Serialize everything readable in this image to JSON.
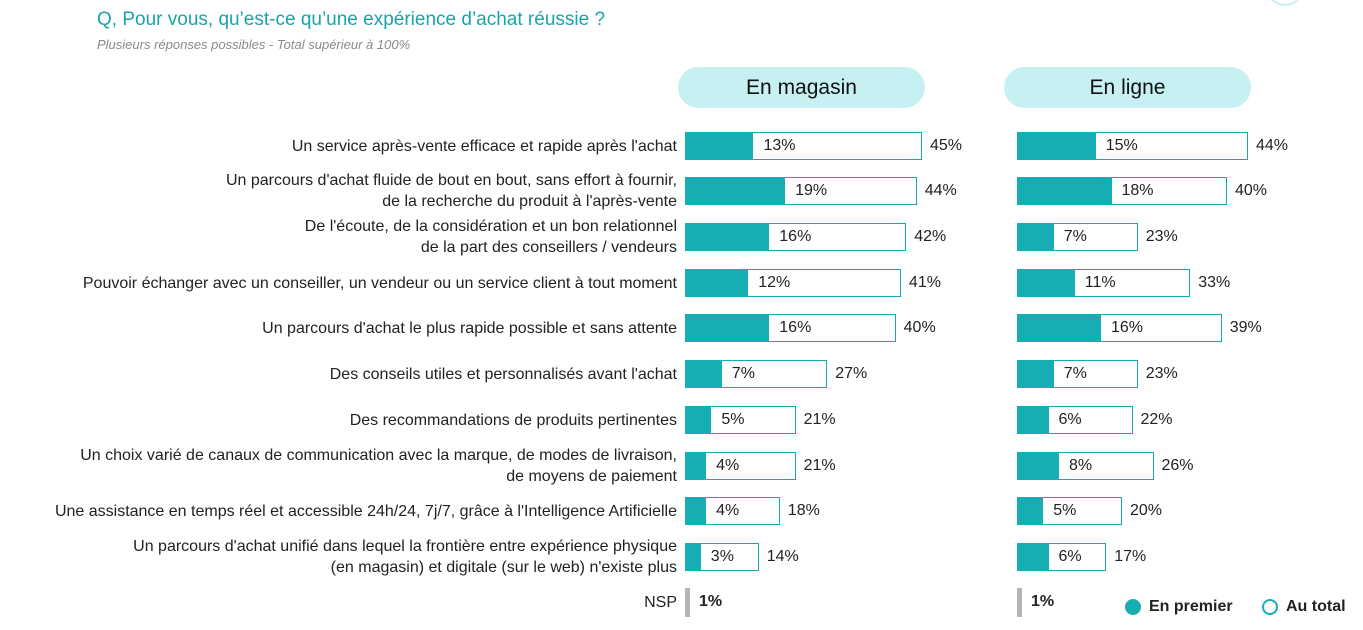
{
  "header": {
    "question": "Q, Pour vous, qu’est-ce qu’une expérience d’achat réussie ?",
    "subtitle": "Plusieurs réponses possibles - Total supérieur à 100%"
  },
  "chart_data": {
    "type": "bar",
    "orientation": "horizontal",
    "panels": [
      "En magasin",
      "En ligne"
    ],
    "categories": [
      [
        "Un service après-vente efficace et rapide après l'achat"
      ],
      [
        "Un parcours d'achat fluide de bout en bout, sans effort à fournir,",
        "de la recherche du produit à l'après-vente"
      ],
      [
        "De l'écoute, de la considération et un bon relationnel",
        "de la part des conseillers / vendeurs"
      ],
      [
        "Pouvoir échanger avec un conseiller, un vendeur ou un service client à tout moment"
      ],
      [
        "Un parcours d'achat le plus rapide possible et sans attente"
      ],
      [
        "Des conseils utiles et personnalisés avant l'achat"
      ],
      [
        "Des recommandations de produits pertinentes"
      ],
      [
        "Un choix varié de canaux de communication avec la marque, de modes de livraison,",
        "de moyens de paiement"
      ],
      [
        "Une assistance en temps réel et accessible 24h/24, 7j/7, grâce à l'Intelligence Artificielle"
      ],
      [
        "Un parcours d'achat unifié dans lequel la frontière entre expérience physique",
        "(en magasin) et digitale (sur le web) n'existe plus"
      ]
    ],
    "series": [
      {
        "name": "En premier",
        "panel": "En magasin",
        "values": [
          13,
          19,
          16,
          12,
          16,
          7,
          5,
          4,
          4,
          3
        ]
      },
      {
        "name": "Au total",
        "panel": "En magasin",
        "values": [
          45,
          44,
          42,
          41,
          40,
          27,
          21,
          21,
          18,
          14
        ]
      },
      {
        "name": "En premier",
        "panel": "En ligne",
        "values": [
          15,
          18,
          7,
          11,
          16,
          7,
          6,
          8,
          5,
          6
        ]
      },
      {
        "name": "Au total",
        "panel": "En ligne",
        "values": [
          44,
          40,
          23,
          33,
          39,
          23,
          22,
          26,
          20,
          17
        ]
      }
    ],
    "value_suffix": "%",
    "nsp": {
      "label": "NSP",
      "magasin": 1,
      "ligne": 1
    },
    "legend": [
      {
        "name": "En premier",
        "style": "filled"
      },
      {
        "name": "Au total",
        "style": "outline"
      }
    ],
    "legend_position": "bottom-right",
    "colors": {
      "bar": "#17aeb3",
      "pill": "#c6f0f1",
      "title": "#1aa3a8",
      "nsp": "#b5b5b5"
    }
  }
}
